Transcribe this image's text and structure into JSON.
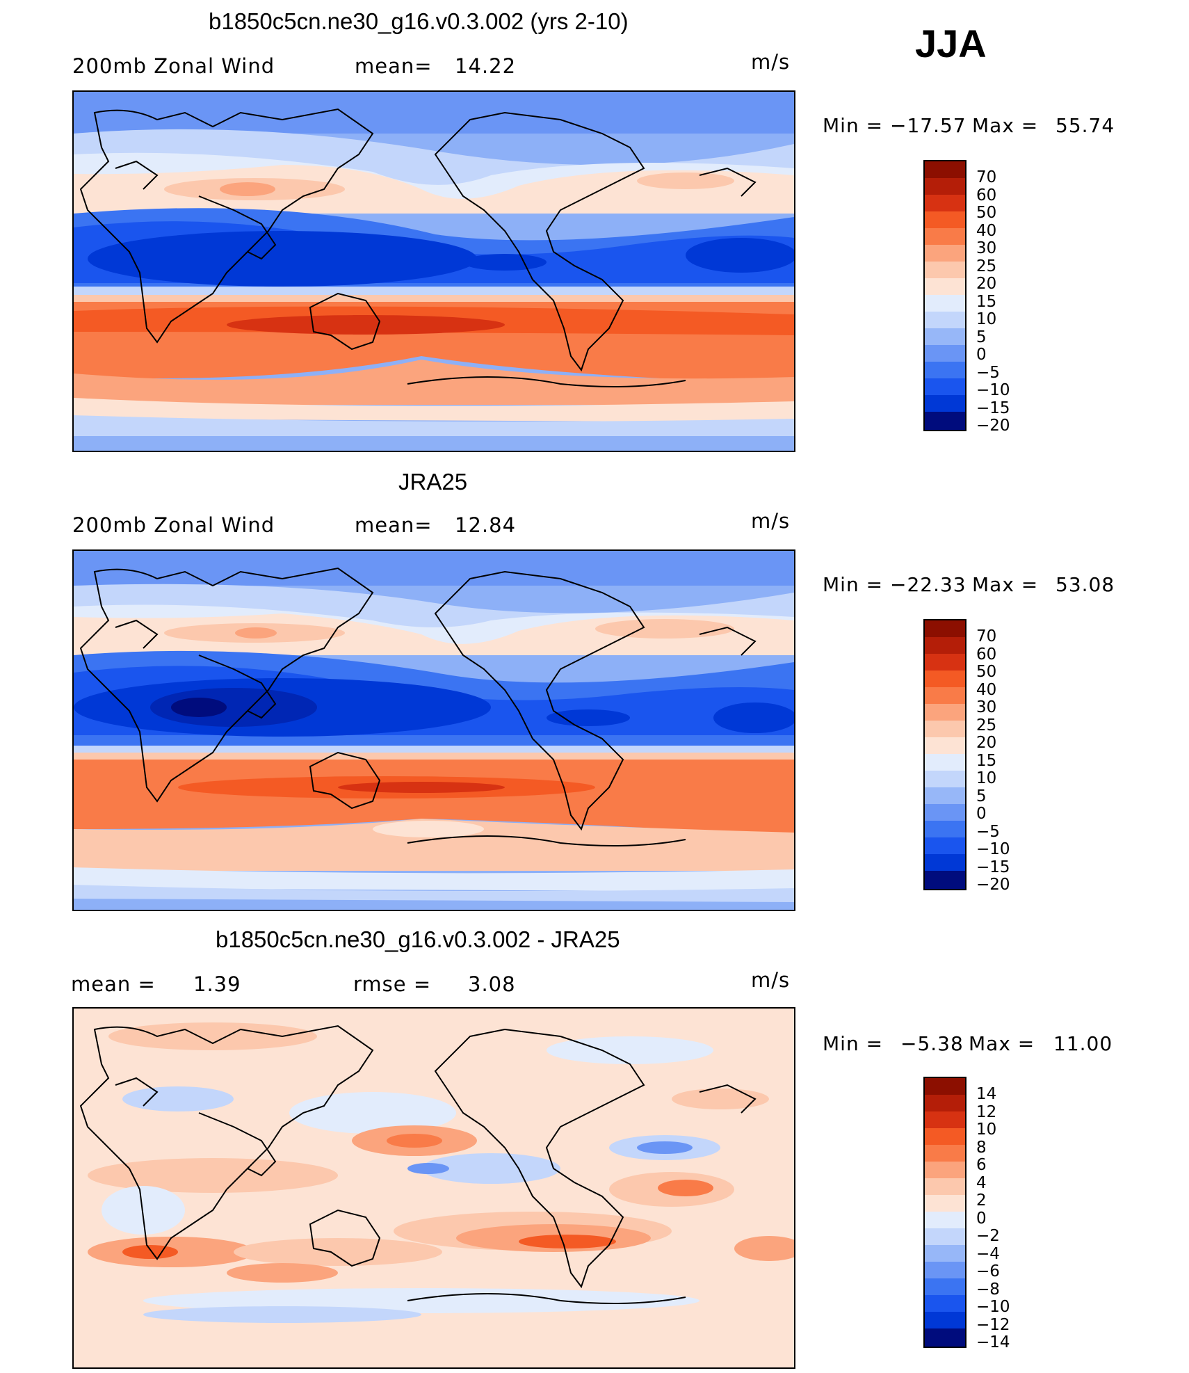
{
  "season": "JJA",
  "units": "m/s",
  "colors": {
    "wind": [
      "#000c7d",
      "#0026b4",
      "#0038d6",
      "#1a55ee",
      "#3b74f2",
      "#6a95f5",
      "#97b7f8",
      "#c3d6fb",
      "#e2ecfc",
      "#fde3d4",
      "#fcc8ad",
      "#fba47d",
      "#f97b48",
      "#f45a24",
      "#d73212",
      "#b41e08",
      "#8c0f00"
    ],
    "diff": [
      "#000c7d",
      "#0026b4",
      "#0038d6",
      "#1a55ee",
      "#3b74f2",
      "#6a95f5",
      "#97b7f8",
      "#c3d6fb",
      "#e2ecfc",
      "#fde3d4",
      "#fcc8ad",
      "#fba47d",
      "#f97b48",
      "#f45a24",
      "#d73212",
      "#b41e08",
      "#8c0f00"
    ]
  },
  "panels": [
    {
      "title": "b1850c5cn.ne30_g16.v0.3.002 (yrs 2-10)",
      "left_label": "200mb Zonal Wind",
      "mean_label": "mean=",
      "mean_value": "14.22",
      "units": "m/s",
      "min_label": "Min =",
      "min_value": "−17.57",
      "max_label": "Max =",
      "max_value": "55.74",
      "colorbar_labels": [
        "70",
        "60",
        "50",
        "40",
        "30",
        "25",
        "20",
        "15",
        "10",
        "5",
        "0",
        "−5",
        "−10",
        "−15",
        "−20"
      ]
    },
    {
      "title": "JRA25",
      "left_label": "200mb Zonal Wind",
      "mean_label": "mean=",
      "mean_value": "12.84",
      "units": "m/s",
      "min_label": "Min =",
      "min_value": "−22.33",
      "max_label": "Max =",
      "max_value": "53.08",
      "colorbar_labels": [
        "70",
        "60",
        "50",
        "40",
        "30",
        "25",
        "20",
        "15",
        "10",
        "5",
        "0",
        "−5",
        "−10",
        "−15",
        "−20"
      ]
    },
    {
      "title": "b1850c5cn.ne30_g16.v0.3.002 - JRA25",
      "mean_label": "mean =",
      "mean_value": "1.39",
      "rmse_label": "rmse =",
      "rmse_value": "3.08",
      "units": "m/s",
      "min_label": "Min =",
      "min_value": "−5.38",
      "max_label": "Max =",
      "max_value": "11.00",
      "colorbar_labels": [
        "14",
        "12",
        "10",
        "8",
        "6",
        "4",
        "2",
        "0",
        "−2",
        "−4",
        "−6",
        "−8",
        "−10",
        "−12",
        "−14"
      ]
    }
  ]
}
